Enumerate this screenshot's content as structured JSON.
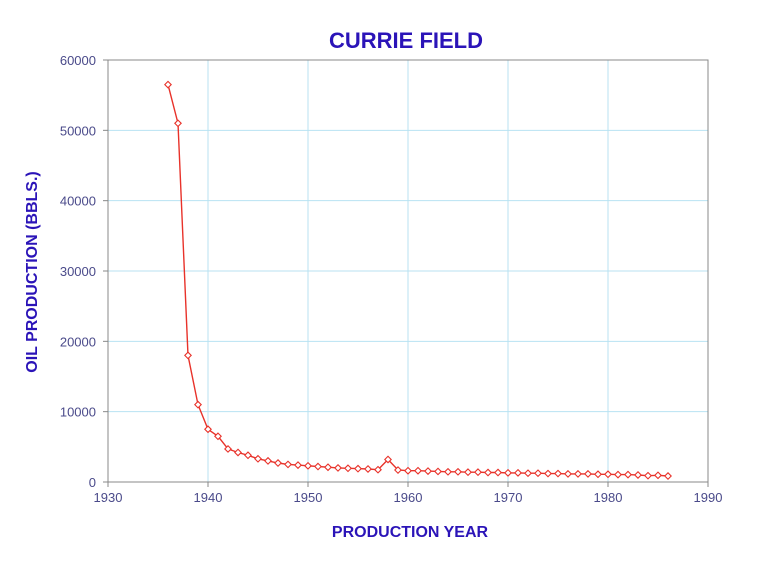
{
  "chart_data": {
    "type": "line",
    "title": "CURRIE FIELD",
    "xlabel": "PRODUCTION YEAR",
    "ylabel": "OIL PRODUCTION (BBLS.)",
    "xlim": [
      1930,
      1990
    ],
    "ylim": [
      0,
      60000
    ],
    "xticks": [
      1930,
      1940,
      1950,
      1960,
      1970,
      1980,
      1990
    ],
    "yticks": [
      0,
      10000,
      20000,
      30000,
      40000,
      50000,
      60000
    ],
    "xtick_labels": [
      "1930",
      "1940",
      "1950",
      "1960",
      "1970",
      "1980",
      "1990"
    ],
    "ytick_labels": [
      "0",
      "10000",
      "20000",
      "30000",
      "40000",
      "50000",
      "60000"
    ],
    "grid": true,
    "legend": "none",
    "colors": {
      "title": "#2b14b8",
      "axis_label": "#2b14b8",
      "tick_label": "#4a4a8a",
      "grid": "#b8e2f2",
      "frame": "#888888",
      "series": "#e8322a"
    },
    "series": [
      {
        "marker": "diamond-open",
        "x": [
          1936,
          1937,
          1938,
          1939,
          1940,
          1941,
          1942,
          1943,
          1944,
          1945,
          1946,
          1947,
          1948,
          1949,
          1950,
          1951,
          1952,
          1953,
          1954,
          1955,
          1956,
          1957,
          1958,
          1959,
          1960,
          1961,
          1962,
          1963,
          1964,
          1965,
          1966,
          1967,
          1968,
          1969,
          1970,
          1971,
          1972,
          1973,
          1974,
          1975,
          1976,
          1977,
          1978,
          1979,
          1980,
          1981,
          1982,
          1983,
          1984,
          1985,
          1986
        ],
        "values": [
          56500,
          51000,
          18000,
          11000,
          7500,
          6500,
          4700,
          4200,
          3800,
          3300,
          3000,
          2700,
          2500,
          2400,
          2300,
          2200,
          2100,
          2000,
          1950,
          1900,
          1850,
          1750,
          3200,
          1700,
          1600,
          1600,
          1550,
          1500,
          1450,
          1450,
          1400,
          1400,
          1350,
          1350,
          1300,
          1300,
          1250,
          1250,
          1200,
          1200,
          1150,
          1150,
          1150,
          1100,
          1100,
          1050,
          1050,
          1000,
          900,
          950,
          850
        ]
      }
    ]
  }
}
